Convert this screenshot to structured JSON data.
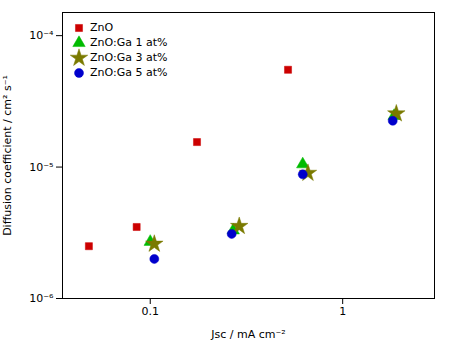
{
  "chart_data": {
    "type": "scatter",
    "xlabel": "Jsc / mA cm⁻²",
    "ylabel": "Diffusion coefficient / cm² s⁻¹",
    "log": true,
    "grid": false,
    "legend": "upper left",
    "xlim": [
      0.035,
      3.0
    ],
    "ylim": [
      1e-06,
      0.00015
    ],
    "xticks": [
      0.1,
      1
    ],
    "yticks": [
      {
        "value": 1e-06,
        "label": "10⁻⁶"
      },
      {
        "value": 1e-05,
        "label": "10⁻⁵"
      },
      {
        "value": 0.0001,
        "label": "10⁻⁴"
      }
    ],
    "series": [
      {
        "name": "ZnO",
        "color": "#cc0000",
        "marker": "square",
        "x": [
          0.048,
          0.085,
          0.175,
          0.52
        ],
        "values": [
          2.5e-06,
          3.5e-06,
          1.55e-05,
          5.5e-05
        ]
      },
      {
        "name": "ZnO:Ga 1 at%",
        "color": "#00bb00",
        "marker": "triangle",
        "x": [
          0.1,
          0.27,
          0.62,
          1.85
        ],
        "values": [
          2.7e-06,
          3.3e-06,
          1.05e-05,
          2.45e-05
        ]
      },
      {
        "name": "ZnO:Ga 3 at%",
        "color": "#7a7a00",
        "marker": "star",
        "x": [
          0.105,
          0.29,
          0.66,
          1.9
        ],
        "values": [
          2.6e-06,
          3.55e-06,
          9e-06,
          2.55e-05
        ]
      },
      {
        "name": "ZnO:Ga 5 at%",
        "color": "#0000cc",
        "marker": "circle",
        "x": [
          0.105,
          0.265,
          0.62,
          1.82
        ],
        "values": [
          2e-06,
          3.1e-06,
          8.8e-06,
          2.25e-05
        ]
      }
    ]
  }
}
